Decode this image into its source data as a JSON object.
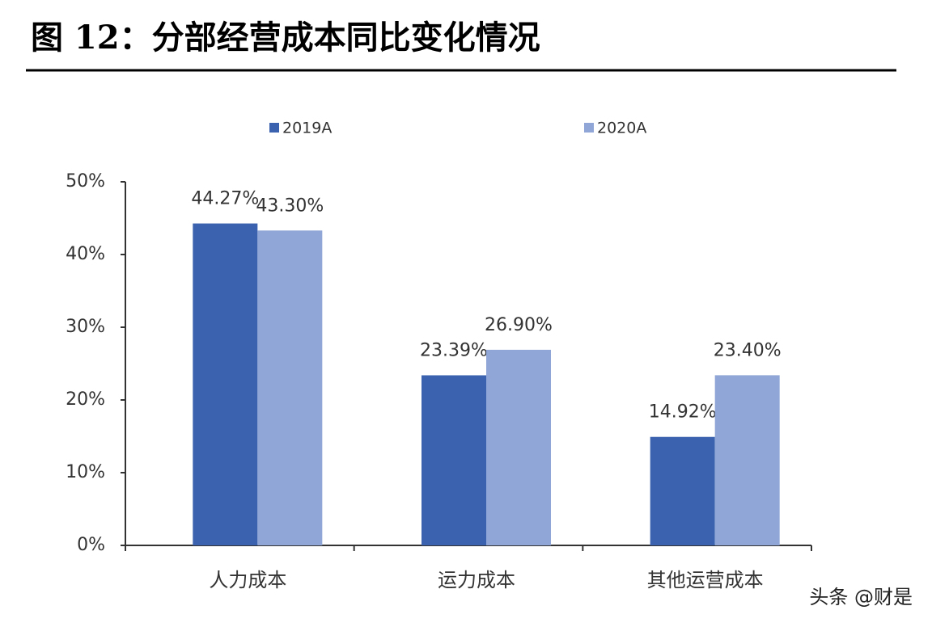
{
  "chart_data": {
    "type": "bar",
    "title": "图 12：分部经营成本同比变化情况",
    "categories": [
      "人力成本",
      "运力成本",
      "其他运营成本"
    ],
    "series": [
      {
        "name": "2019A",
        "color": "#3a62ae",
        "values": [
          44.27,
          23.39,
          14.92
        ],
        "value_labels": [
          "44.27%",
          "23.39%",
          "14.92%"
        ]
      },
      {
        "name": "2020A",
        "color": "#8fa6d6",
        "values": [
          43.3,
          26.9,
          23.4
        ],
        "value_labels": [
          "43.30%",
          "26.90%",
          "23.40%"
        ]
      }
    ],
    "ylim": [
      0,
      50
    ],
    "yticks": [
      {
        "value": 0,
        "label": "0%"
      },
      {
        "value": 10,
        "label": "10%"
      },
      {
        "value": 20,
        "label": "20%"
      },
      {
        "value": 30,
        "label": "30%"
      },
      {
        "value": 40,
        "label": "40%"
      },
      {
        "value": 50,
        "label": "50%"
      }
    ],
    "grid": false,
    "watermark": "头条 @财是"
  }
}
